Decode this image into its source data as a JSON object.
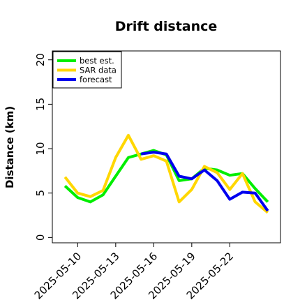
{
  "chart_data": {
    "type": "line",
    "title": "Drift distance",
    "xlabel": "",
    "ylabel": "Distance (km)",
    "ylim": [
      0,
      20
    ],
    "yticks": [
      0,
      5,
      10,
      15,
      20
    ],
    "xtick_labels": [
      "2025-05-10",
      "2025-05-13",
      "2025-05-16",
      "2025-05-19",
      "2025-05-22"
    ],
    "x": [
      "2025-05-09",
      "2025-05-10",
      "2025-05-11",
      "2025-05-12",
      "2025-05-13",
      "2025-05-14",
      "2025-05-15",
      "2025-05-16",
      "2025-05-17",
      "2025-05-18",
      "2025-05-19",
      "2025-05-20",
      "2025-05-21",
      "2025-05-22",
      "2025-05-23",
      "2025-05-24",
      "2025-05-25"
    ],
    "xlim": [
      "2025-05-08",
      "2025-05-26"
    ],
    "legend_position": "top-left",
    "grid": false,
    "series": [
      {
        "name": "best est.",
        "color": "#00ee00",
        "values": [
          5.8,
          4.5,
          4.0,
          4.8,
          6.9,
          9.0,
          9.4,
          9.8,
          9.3,
          6.4,
          6.6,
          7.8,
          7.6,
          7.0,
          7.2,
          5.5,
          4.0
        ]
      },
      {
        "name": "SAR data",
        "color": "#ffd700",
        "values": [
          6.8,
          5.0,
          4.6,
          5.3,
          9.0,
          11.5,
          8.8,
          9.2,
          8.6,
          4.0,
          5.4,
          8.0,
          7.3,
          5.4,
          7.2,
          4.0,
          2.8
        ]
      },
      {
        "name": "forecast",
        "color": "#0000ee",
        "values": [
          null,
          null,
          null,
          null,
          null,
          null,
          9.4,
          9.6,
          9.4,
          6.9,
          6.6,
          7.6,
          6.4,
          4.3,
          5.1,
          5.0,
          3.0
        ]
      }
    ]
  }
}
